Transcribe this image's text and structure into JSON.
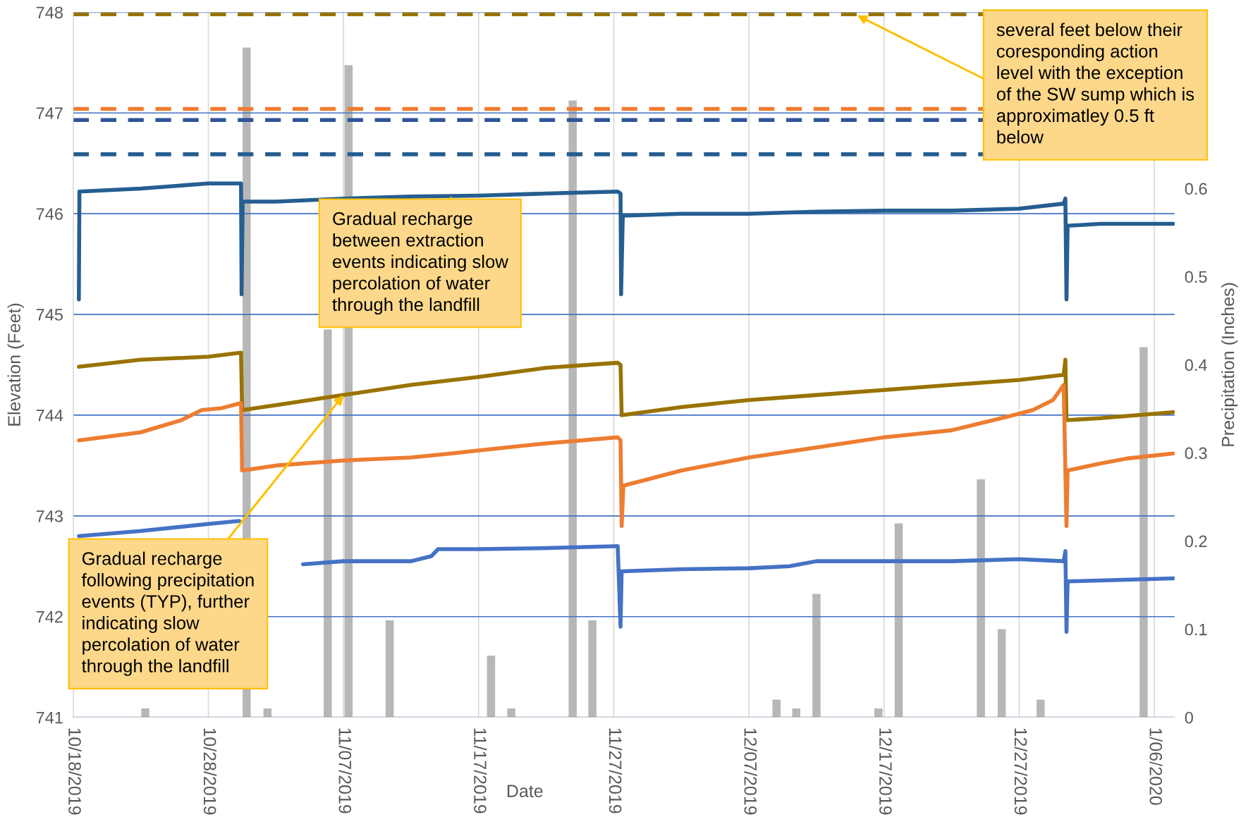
{
  "chart_data": {
    "type": "line",
    "xlabel": "Date",
    "ylabel": "Elevation (Feet)",
    "y2label": "Precipitation (Inches)",
    "xlim": [
      "2019-10-18T00:00",
      "2020-01-07T12:00"
    ],
    "xticks": [
      {
        "value": "2019-10-18",
        "label": "10/18/2019"
      },
      {
        "value": "2019-10-28",
        "label": "10/28/2019"
      },
      {
        "value": "2019-11-07",
        "label": "11/07/2019"
      },
      {
        "value": "2019-11-17",
        "label": "11/17/2019"
      },
      {
        "value": "2019-11-27",
        "label": "11/27/2019"
      },
      {
        "value": "2019-12-07",
        "label": "12/07/2019"
      },
      {
        "value": "2019-12-17",
        "label": "12/17/2019"
      },
      {
        "value": "2019-12-27",
        "label": "12/27/2019"
      },
      {
        "value": "2020-01-06",
        "label": "1/06/2020"
      }
    ],
    "ylim": [
      741,
      748
    ],
    "yticks": [
      741,
      742,
      743,
      744,
      745,
      746,
      747,
      748
    ],
    "y2lim": [
      0,
      0.8
    ],
    "y2ticks": [
      0,
      0.1,
      0.2,
      0.3,
      0.4,
      0.5,
      0.6
    ],
    "grid": true,
    "line_style": "solid",
    "series": [
      {
        "type": "bar",
        "axis": "y2",
        "color": "#b7b7b7",
        "x": [
          "2019-10-23T08:00",
          "2019-10-30T20:00",
          "2019-11-01T09:00",
          "2019-11-05T20:00",
          "2019-11-07T09:00",
          "2019-11-10T10:00",
          "2019-11-17T22:00",
          "2019-11-19T10:00",
          "2019-11-23T23:00",
          "2019-11-25T10:00",
          "2019-12-09T01:00",
          "2019-12-10T12:00",
          "2019-12-12T00:00",
          "2019-12-16T14:00",
          "2019-12-18T02:00",
          "2019-12-24T04:00",
          "2019-12-25T17:00",
          "2019-12-28T14:00",
          "2020-01-05T05:00"
        ],
        "values": [
          0.01,
          0.76,
          0.01,
          0.44,
          0.74,
          0.11,
          0.07,
          0.01,
          0.7,
          0.11,
          0.02,
          0.01,
          0.14,
          0.01,
          0.22,
          0.27,
          0.1,
          0.02,
          0.42
        ]
      },
      {
        "color": "#255e91",
        "x": [
          "2019-10-18T10:00",
          "2019-10-18T11:00",
          "2019-10-23",
          "2019-10-28",
          "2019-10-30T10:00",
          "2019-10-30T11:00",
          "2019-10-30T13:00",
          "2019-11-02",
          "2019-11-07",
          "2019-11-12",
          "2019-11-17",
          "2019-11-22",
          "2019-11-27T07:00",
          "2019-11-27T12:00",
          "2019-11-27T13:00",
          "2019-11-27T16:00",
          "2019-12-02",
          "2019-12-07",
          "2019-12-12",
          "2019-12-17",
          "2019-12-22",
          "2019-12-27",
          "2019-12-30T07:00",
          "2019-12-30T10:00",
          "2019-12-30T12:00",
          "2019-12-30T14:00",
          "2020-01-02",
          "2020-01-07T10:00"
        ],
        "values": [
          745.15,
          746.22,
          746.25,
          746.3,
          746.3,
          745.2,
          746.12,
          746.12,
          746.15,
          746.17,
          746.18,
          746.2,
          746.22,
          746.2,
          745.2,
          745.98,
          746.0,
          746.0,
          746.02,
          746.03,
          746.03,
          746.05,
          746.1,
          746.15,
          745.15,
          745.88,
          745.9,
          745.9
        ]
      },
      {
        "color": "#997300",
        "x": [
          "2019-10-18T10:00",
          "2019-10-23",
          "2019-10-28",
          "2019-10-30T10:00",
          "2019-10-30T12:00",
          "2019-11-02",
          "2019-11-07",
          "2019-11-12",
          "2019-11-17",
          "2019-11-22",
          "2019-11-27T07:00",
          "2019-11-27T12:00",
          "2019-11-27T14:00",
          "2019-12-02",
          "2019-12-07",
          "2019-12-12",
          "2019-12-17",
          "2019-12-22",
          "2019-12-27",
          "2019-12-30T07:00",
          "2019-12-30T10:00",
          "2019-12-30T12:00",
          "2020-01-02",
          "2020-01-07T10:00"
        ],
        "values": [
          744.48,
          744.55,
          744.58,
          744.62,
          744.05,
          744.1,
          744.2,
          744.3,
          744.38,
          744.47,
          744.52,
          744.5,
          744.0,
          744.08,
          744.15,
          744.2,
          744.25,
          744.3,
          744.35,
          744.4,
          744.55,
          743.95,
          743.97,
          744.03
        ]
      },
      {
        "color": "#ed7d31",
        "x": [
          "2019-10-18T10:00",
          "2019-10-23",
          "2019-10-26",
          "2019-10-27T12:00",
          "2019-10-29",
          "2019-10-30T10:00",
          "2019-10-30T12:00",
          "2019-11-02",
          "2019-11-07",
          "2019-11-12",
          "2019-11-15",
          "2019-11-17",
          "2019-11-22",
          "2019-11-27T07:00",
          "2019-11-27T12:00",
          "2019-11-27T14:00",
          "2019-11-27T17:00",
          "2019-12-02",
          "2019-12-07",
          "2019-12-12",
          "2019-12-17",
          "2019-12-22",
          "2019-12-26",
          "2019-12-28",
          "2019-12-29T12:00",
          "2019-12-30T07:00",
          "2019-12-30T12:00",
          "2019-12-30T14:00",
          "2020-01-02",
          "2020-01-04",
          "2020-01-07T10:00"
        ],
        "values": [
          743.75,
          743.83,
          743.95,
          744.05,
          744.07,
          744.12,
          743.45,
          743.5,
          743.55,
          743.58,
          743.62,
          743.65,
          743.72,
          743.78,
          743.75,
          742.9,
          743.3,
          743.45,
          743.58,
          743.68,
          743.78,
          743.85,
          743.98,
          744.05,
          744.15,
          744.3,
          742.9,
          743.45,
          743.52,
          743.57,
          743.62
        ]
      },
      {
        "color": "#4472c4",
        "x": [
          "2019-10-18T10:00",
          "2019-10-23",
          "2019-10-28",
          "2019-10-30T07:00",
          "2019-10-30T12:00",
          "2019-11-04",
          "2019-11-07",
          "2019-11-12",
          "2019-11-13T12:00",
          "2019-11-14",
          "2019-11-17",
          "2019-11-22",
          "2019-11-27T07:00",
          "2019-11-27T12:00",
          "2019-11-27T14:00",
          "2019-12-02",
          "2019-12-07",
          "2019-12-10",
          "2019-12-12",
          "2019-12-17",
          "2019-12-22",
          "2019-12-27",
          "2019-12-30T07:00",
          "2019-12-30T10:00",
          "2019-12-30T12:00",
          "2019-12-30T14:00",
          "2020-01-07T10:00"
        ],
        "values": [
          742.8,
          742.85,
          742.92,
          742.95,
          null,
          742.52,
          742.55,
          742.55,
          742.6,
          742.67,
          742.67,
          742.68,
          742.7,
          741.9,
          742.45,
          742.47,
          742.48,
          742.5,
          742.55,
          742.55,
          742.55,
          742.57,
          742.55,
          742.65,
          741.85,
          742.35,
          742.38
        ]
      }
    ],
    "ref_lines": [
      {
        "axis": "y",
        "value": 747.98,
        "color": "#997300",
        "line_style": "dashed"
      },
      {
        "axis": "y",
        "value": 747.04,
        "color": "#ed7d31",
        "line_style": "dashed"
      },
      {
        "axis": "y",
        "value": 746.93,
        "color": "#2f5597",
        "line_style": "dashed"
      },
      {
        "axis": "y",
        "value": 746.59,
        "color": "#255e91",
        "line_style": "dashed"
      }
    ],
    "annotations": [
      {
        "text": "Gradual recharge\nbetween extraction\nevents indicating slow\npercolation of water\nthrough the landfill",
        "x": "2019-11-15",
        "y": 746.17
      },
      {
        "text": "Gradual recharge\nfollowing precipitation\nevents (TYP), further\nindicating slow\npercolation of water\nthrough the landfill",
        "x": "2019-11-07",
        "y": 744.2
      },
      {
        "text": "several feet below their\ncoresponding action\nlevel with the exception\nof the SW sump which is\napproximatley 0.5 ft\nbelow",
        "x": "2019-12-15",
        "y": 747.97
      }
    ]
  }
}
